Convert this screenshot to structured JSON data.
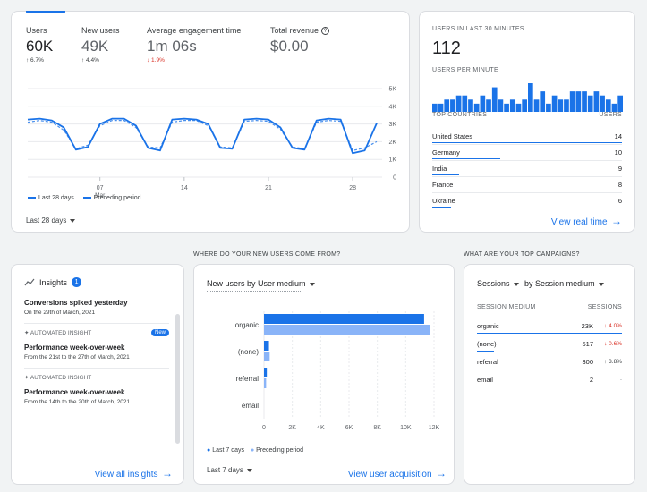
{
  "overview": {
    "metrics": [
      {
        "label": "Users",
        "value": "60K",
        "delta": "↑ 6.7%",
        "dir": "up"
      },
      {
        "label": "New users",
        "value": "49K",
        "delta": "↑ 4.4%",
        "dir": "up"
      },
      {
        "label": "Average engagement time",
        "value": "1m 06s",
        "delta": "↓ 1.9%",
        "dir": "down"
      },
      {
        "label": "Total revenue",
        "value": "$0.00",
        "delta": "",
        "dir": "none"
      }
    ],
    "legend_current": "Last 28 days",
    "legend_previous": "Preceding period",
    "date_range": "Last 28 days",
    "accent": "#1a73e8"
  },
  "chart_data": {
    "type": "line",
    "x": [
      1,
      2,
      3,
      4,
      5,
      6,
      7,
      8,
      9,
      10,
      11,
      12,
      13,
      14,
      15,
      16,
      17,
      18,
      19,
      20,
      21,
      22,
      23,
      24,
      25,
      26,
      27,
      28,
      29,
      30
    ],
    "x_ticks": [
      {
        "at": 7,
        "label": "07",
        "sub": "Mar"
      },
      {
        "at": 14,
        "label": "14"
      },
      {
        "at": 21,
        "label": "21"
      },
      {
        "at": 28,
        "label": "28"
      }
    ],
    "y_ticks": [
      "0",
      "1K",
      "2K",
      "3K",
      "4K",
      "5K"
    ],
    "ylim": [
      0,
      5000
    ],
    "series": [
      {
        "name": "Last 28 days",
        "style": "solid",
        "values": [
          3250,
          3300,
          3200,
          2800,
          1550,
          1700,
          3000,
          3300,
          3300,
          2900,
          1650,
          1500,
          3250,
          3300,
          3250,
          3000,
          1650,
          1600,
          3250,
          3300,
          3250,
          2800,
          1650,
          1550,
          3200,
          3300,
          3250,
          1350,
          1500,
          3050
        ]
      },
      {
        "name": "Preceding period",
        "style": "dashed",
        "values": [
          3100,
          3200,
          3100,
          2650,
          1600,
          1800,
          2900,
          3200,
          3200,
          2800,
          1700,
          1650,
          3100,
          3200,
          3200,
          2900,
          1700,
          1650,
          3150,
          3200,
          3150,
          2700,
          1700,
          1600,
          3100,
          3200,
          3150,
          1500,
          1650,
          2000
        ]
      }
    ]
  },
  "realtime": {
    "title": "USERS IN LAST 30 MINUTES",
    "value": "112",
    "per_minute": "USERS PER MINUTE",
    "per_minute_values": [
      2,
      2,
      3,
      3,
      4,
      4,
      3,
      2,
      4,
      3,
      6,
      3,
      2,
      3,
      2,
      3,
      7,
      3,
      5,
      2,
      4,
      3,
      3,
      5,
      5,
      5,
      4,
      5,
      4,
      3,
      2,
      4
    ],
    "countries_header": "TOP COUNTRIES",
    "users_header": "USERS",
    "countries": [
      {
        "name": "United States",
        "users": "14",
        "share": 1.0
      },
      {
        "name": "Germany",
        "users": "10",
        "share": 0.36
      },
      {
        "name": "India",
        "users": "9",
        "share": 0.14
      },
      {
        "name": "France",
        "users": "8",
        "share": 0.12
      },
      {
        "name": "Ukraine",
        "users": "6",
        "share": 0.1
      }
    ],
    "link": "View real time"
  },
  "sections": {
    "acquisition": "WHERE DO YOUR NEW USERS COME FROM?",
    "campaigns": "WHAT ARE YOUR TOP CAMPAIGNS?"
  },
  "insights": {
    "title": "Insights",
    "count": "1",
    "items": [
      {
        "tag": "",
        "new": "",
        "title": "Conversions spiked yesterday",
        "desc": "On the 29th of March, 2021"
      },
      {
        "tag": "AUTOMATED INSIGHT",
        "new": "New",
        "title": "Performance week-over-week",
        "desc": "From the 21st to the 27th of March, 2021"
      },
      {
        "tag": "AUTOMATED INSIGHT",
        "new": "",
        "title": "Performance week-over-week",
        "desc": "From the 14th to the 20th of March, 2021"
      }
    ],
    "link": "View all insights"
  },
  "acquisition": {
    "selector": "New users by User medium",
    "date_range": "Last 7 days",
    "link": "View user acquisition",
    "chart": {
      "type": "bar",
      "orientation": "horizontal",
      "categories": [
        "organic",
        "(none)",
        "referral",
        "email"
      ],
      "x_ticks": [
        "0",
        "2K",
        "4K",
        "6K",
        "8K",
        "10K",
        "12K"
      ],
      "xlim": [
        0,
        12000
      ],
      "series": [
        {
          "name": "Last 7 days",
          "color": "#1a73e8",
          "values": [
            11300,
            350,
            200,
            0
          ]
        },
        {
          "name": "Preceding period",
          "color": "#8ab4f8",
          "values": [
            11700,
            400,
            150,
            0
          ]
        }
      ]
    }
  },
  "campaigns": {
    "selector_metric": "Sessions",
    "selector_dim": "by Session medium",
    "col_medium": "SESSION MEDIUM",
    "col_sessions": "SESSIONS",
    "rows": [
      {
        "name": "organic",
        "value": "23K",
        "change": "↓ 4.0%",
        "dir": "down",
        "share": 1.0
      },
      {
        "name": "(none)",
        "value": "517",
        "change": "↓ 0.6%",
        "dir": "down",
        "share": 0.12
      },
      {
        "name": "referral",
        "value": "300",
        "change": "↑ 3.8%",
        "dir": "up",
        "share": 0.02
      },
      {
        "name": "email",
        "value": "2",
        "change": "-",
        "dir": "flat",
        "share": 0
      }
    ]
  }
}
